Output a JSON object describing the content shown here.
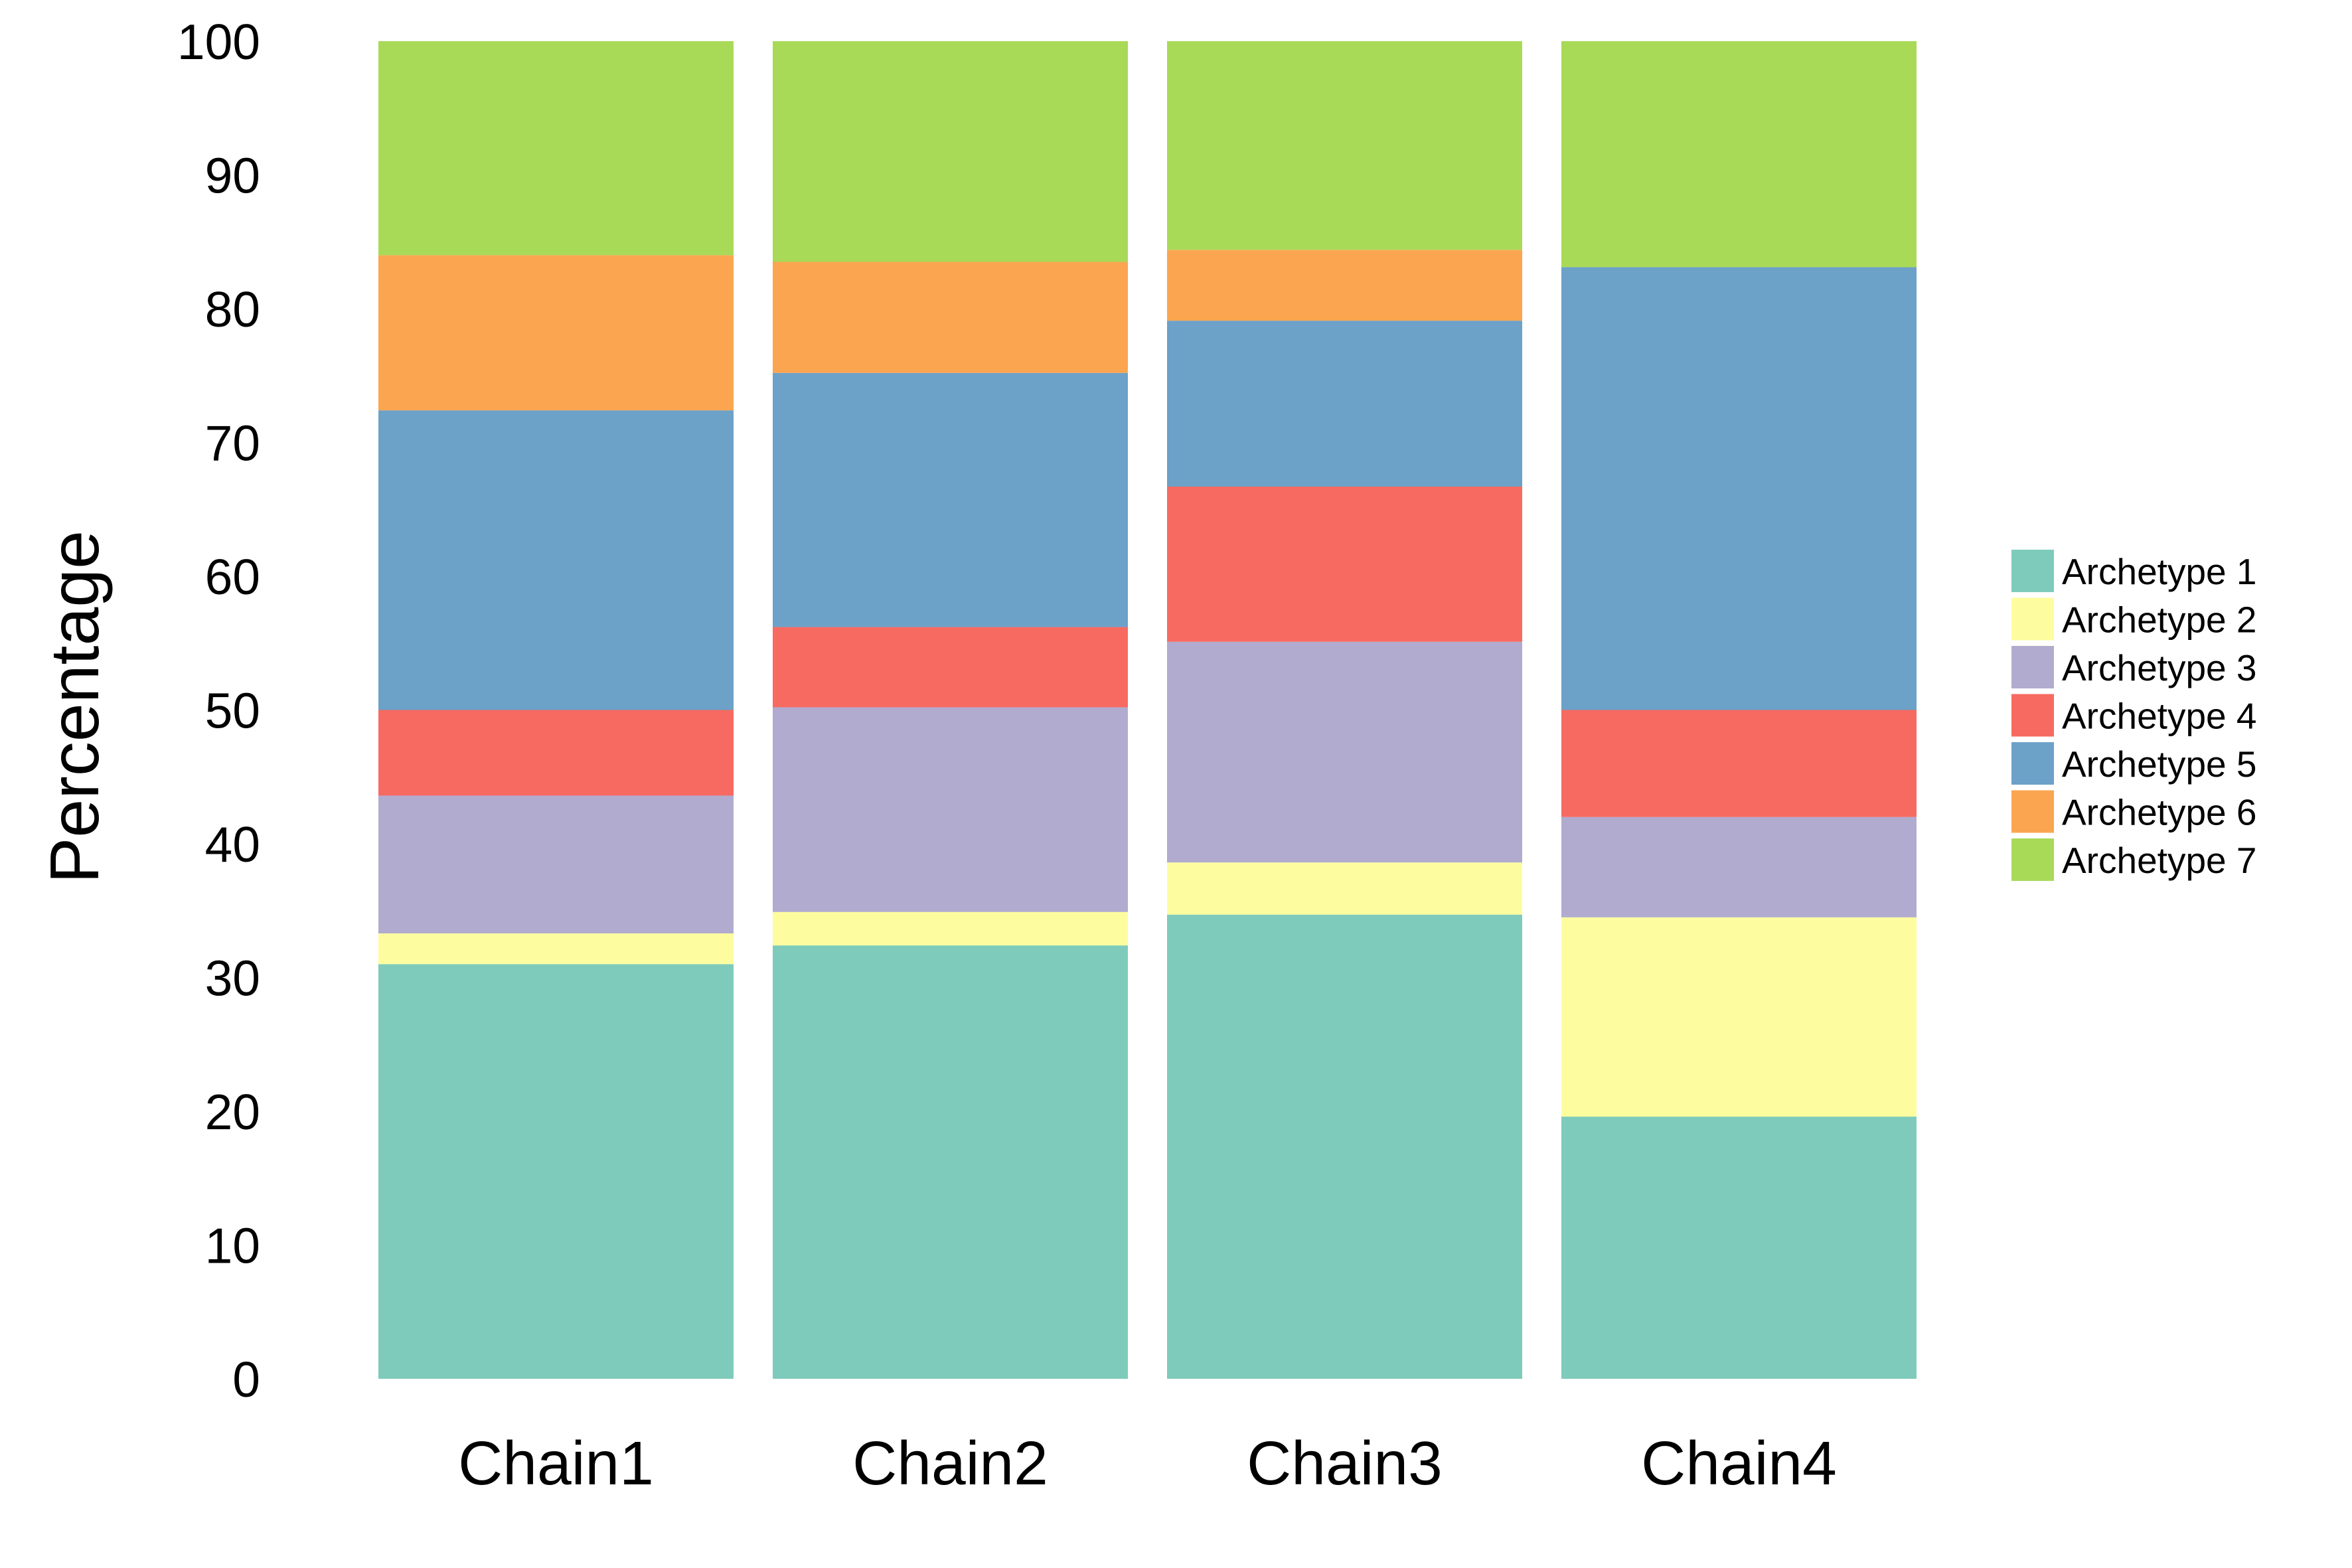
{
  "chart_data": {
    "type": "bar",
    "stacked": true,
    "categories": [
      "Chain1",
      "Chain2",
      "Chain3",
      "Chain4"
    ],
    "ylabel": "Percentage",
    "xlabel": "",
    "ylim": [
      0,
      100
    ],
    "yticks": [
      0,
      10,
      20,
      30,
      40,
      50,
      60,
      70,
      80,
      90,
      100
    ],
    "grid": false,
    "legend_position": "right",
    "series": [
      {
        "name": "Archetype 1",
        "color": "#7fcbbb",
        "values": [
          31.0,
          32.4,
          34.7,
          19.6
        ]
      },
      {
        "name": "Archetype 2",
        "color": "#fdfd9f",
        "values": [
          2.3,
          2.5,
          3.9,
          14.9
        ]
      },
      {
        "name": "Archetype 3",
        "color": "#b0abcf",
        "values": [
          10.3,
          15.3,
          16.5,
          7.5
        ]
      },
      {
        "name": "Archetype 4",
        "color": "#f76a61",
        "values": [
          6.4,
          6.0,
          11.6,
          8.0
        ]
      },
      {
        "name": "Archetype 5",
        "color": "#6ca1c8",
        "values": [
          22.4,
          19.0,
          12.4,
          33.1
        ]
      },
      {
        "name": "Archetype 6",
        "color": "#fba550",
        "values": [
          11.6,
          8.3,
          5.3,
          0.0
        ]
      },
      {
        "name": "Archetype 7",
        "color": "#a8da58",
        "values": [
          16.0,
          16.5,
          15.6,
          16.9
        ]
      }
    ]
  }
}
